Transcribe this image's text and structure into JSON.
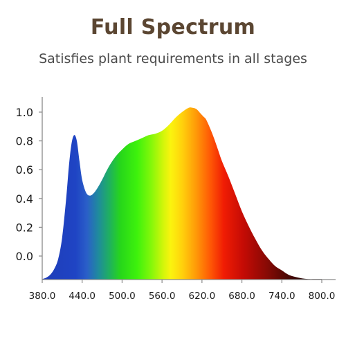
{
  "header": {
    "title": "Full Spectrum",
    "subtitle": "Satisfies plant requirements in all stages"
  },
  "chart_data": {
    "type": "area",
    "title": "Full Spectrum",
    "subtitle": "Satisfies plant requirements in all stages",
    "xlabel": "",
    "ylabel": "",
    "xlim": [
      380,
      800
    ],
    "ylim": [
      -0.16,
      1.08
    ],
    "x_ticks": [
      "380.0",
      "440.0",
      "500.0",
      "560.0",
      "620.0",
      "680.0",
      "740.0",
      "800.0"
    ],
    "y_ticks": [
      "0.0",
      "0.2",
      "0.4",
      "0.6",
      "0.8",
      "1.0"
    ],
    "grid": false,
    "legend": "none",
    "x": [
      380,
      386,
      392,
      398,
      404,
      410,
      416,
      420,
      424,
      428,
      432,
      436,
      440,
      446,
      452,
      458,
      464,
      470,
      480,
      490,
      500,
      510,
      520,
      530,
      540,
      550,
      560,
      570,
      580,
      590,
      600,
      606,
      612,
      618,
      622,
      626,
      632,
      638,
      644,
      650,
      660,
      670,
      680,
      690,
      700,
      710,
      720,
      730,
      740,
      750,
      760,
      770,
      780,
      790,
      800
    ],
    "values": [
      -0.16,
      -0.15,
      -0.13,
      -0.09,
      -0.02,
      0.13,
      0.4,
      0.62,
      0.78,
      0.84,
      0.8,
      0.66,
      0.53,
      0.44,
      0.42,
      0.44,
      0.48,
      0.53,
      0.62,
      0.69,
      0.74,
      0.78,
      0.8,
      0.82,
      0.84,
      0.85,
      0.87,
      0.91,
      0.96,
      1.0,
      1.03,
      1.03,
      1.02,
      0.99,
      0.97,
      0.95,
      0.89,
      0.82,
      0.74,
      0.66,
      0.55,
      0.43,
      0.31,
      0.21,
      0.12,
      0.04,
      -0.02,
      -0.07,
      -0.1,
      -0.13,
      -0.145,
      -0.155,
      -0.16,
      -0.16,
      -0.16
    ],
    "colors": {
      "axis": "#8a8a8a",
      "title": "#5b4632"
    }
  }
}
